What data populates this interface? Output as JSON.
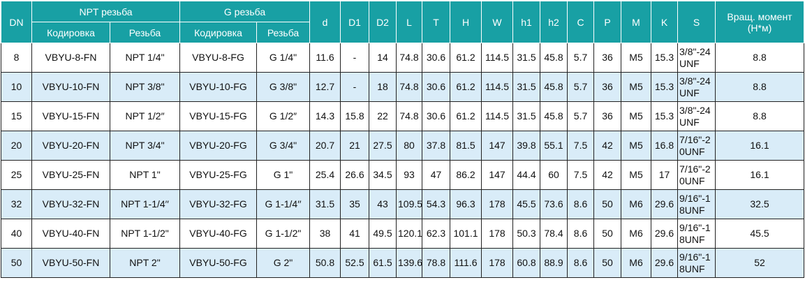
{
  "table": {
    "header": {
      "row1": [
        "DN",
        "NPT резьба",
        "G резьба",
        "d",
        "D1",
        "D2",
        "L",
        "T",
        "H",
        "W",
        "h1",
        "h2",
        "C",
        "P",
        "M",
        "K",
        "S",
        "Вращ. момент (Н*м)"
      ],
      "row2": [
        "Кодировка",
        "Резьба",
        "Кодировка",
        "Резьба"
      ]
    },
    "rows": [
      [
        "8",
        "VBYU-8-FN",
        "NPT 1/4\"",
        "VBYU-8-FG",
        "G 1/4\"",
        "11.6",
        "-",
        "14",
        "74.8",
        "30.6",
        "61.2",
        "114.5",
        "31.5",
        "45.8",
        "5.7",
        "36",
        "M5",
        "15.3",
        "3/8\"-24UNF",
        "8.8"
      ],
      [
        "10",
        "VBYU-10-FN",
        "NPT 3/8\"",
        "VBYU-10-FG",
        "G 3/8\"",
        "12.7",
        "-",
        "18",
        "74.8",
        "30.6",
        "61.2",
        "114.5",
        "31.5",
        "45.8",
        "5.7",
        "36",
        "M5",
        "15.3",
        "3/8\"-24UNF",
        "8.8"
      ],
      [
        "15",
        "VBYU-15-FN",
        "NPT 1/2″",
        "VBYU-15-FG",
        "G 1/2″",
        "14.3",
        "15.8",
        "22",
        "74.8",
        "30.6",
        "61.2",
        "114.5",
        "31.5",
        "45.8",
        "5.7",
        "36",
        "M5",
        "15.3",
        "3/8\"-24UNF",
        "8.8"
      ],
      [
        "20",
        "VBYU-20-FN",
        "NPT 3/4\"",
        "VBYU-20-FG",
        "G 3/4\"",
        "20.7",
        "21",
        "27.5",
        "80",
        "37.8",
        "81.5",
        "147",
        "39.8",
        "55.1",
        "7.5",
        "42",
        "M5",
        "16.8",
        "7/16\"-20UNF",
        "16.1"
      ],
      [
        "25",
        "VBYU-25-FN",
        "NPT 1\"",
        "VBYU-25-FG",
        "G 1\"",
        "25.4",
        "26.6",
        "34.5",
        "93",
        "47",
        "86.2",
        "147",
        "44.4",
        "60",
        "7.5",
        "42",
        "M5",
        "17",
        "7/16\"-20UNF",
        "16.1"
      ],
      [
        "32",
        "VBYU-32-FN",
        "NPT 1-1/4′′",
        "VBYU-32-FG",
        "G 1-1/4′′",
        "31.5",
        "35",
        "43",
        "109.5",
        "54.3",
        "96.3",
        "178",
        "45.5",
        "73.6",
        "8.6",
        "50",
        "M6",
        "29.6",
        "9/16\"-18UNF",
        "32.5"
      ],
      [
        "40",
        "VBYU-40-FN",
        "NPT 1-1/2\"",
        "VBYU-40-FG",
        "G 1-1/2\"",
        "38",
        "41",
        "49.5",
        "120.1",
        "62.3",
        "101.1",
        "178",
        "50.3",
        "78.4",
        "8.6",
        "50",
        "M6",
        "29.6",
        "9/16\"-18UNF",
        "45.5"
      ],
      [
        "50",
        "VBYU-50-FN",
        "NPT 2\"",
        "VBYU-50-FG",
        "G 2\"",
        "50.8",
        "52.5",
        "61.5",
        "139.6",
        "78.8",
        "111.6",
        "178",
        "60.8",
        "88.9",
        "8.6",
        "50",
        "M6",
        "29.6",
        "9/16\"-18UNF",
        "52"
      ]
    ]
  }
}
